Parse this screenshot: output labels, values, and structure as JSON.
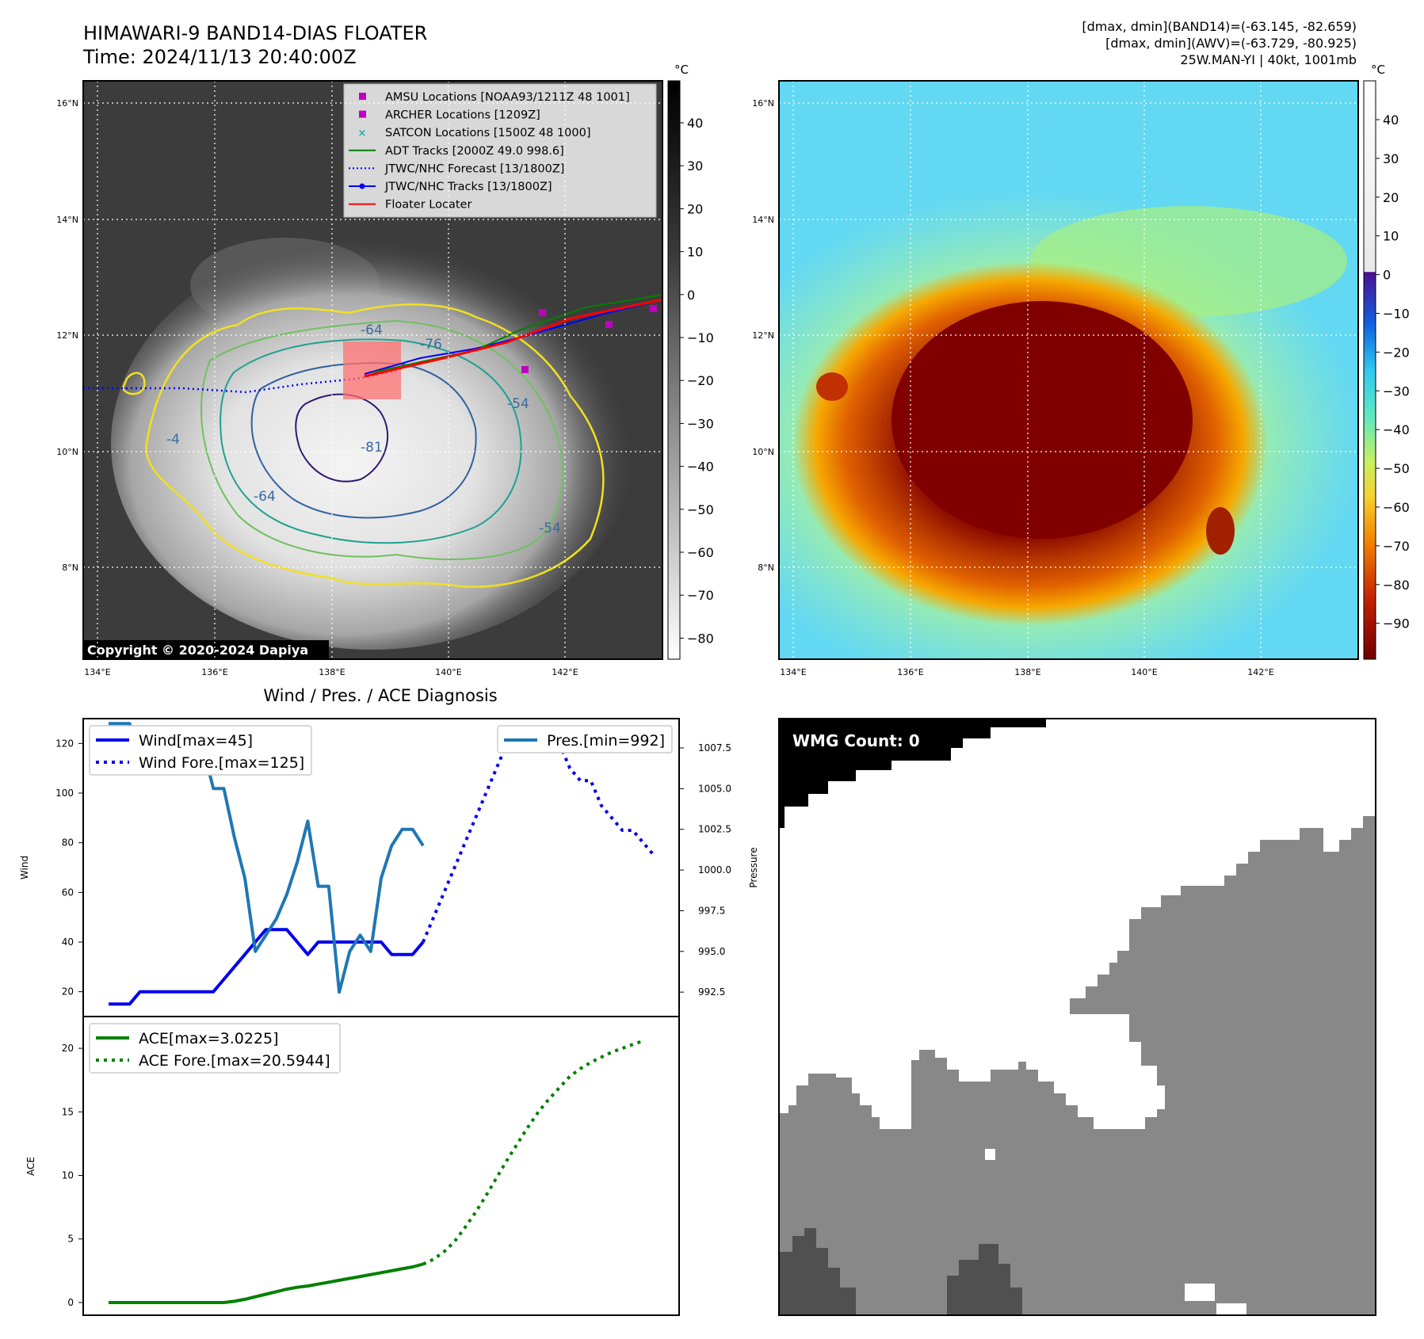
{
  "header": {
    "title_line1": "HIMAWARI-9 BAND14-DIAS FLOATER",
    "title_line2": "Time: 2024/11/13 20:40:00Z",
    "info_line1": "[dmax, dmin](BAND14)=(-63.145, -82.659)",
    "info_line2": "[dmax, dmin](AWV)=(-63.729, -80.925)",
    "info_line3": "25W.MAN-YI | 40kt, 1001mb"
  },
  "map": {
    "lat_labels": [
      "16°N",
      "14°N",
      "12°N",
      "10°N",
      "8°N"
    ],
    "lon_labels": [
      "134°E",
      "136°E",
      "138°E",
      "140°E",
      "142°E"
    ],
    "contour_labels": [
      "-64",
      "-76",
      "-54",
      "-81",
      "-64",
      "-4",
      "-54"
    ],
    "copyright": "Copyright © 2020-2024 Dapiya",
    "legend": [
      {
        "label": "AMSU Locations [NOAA93/1211Z 48 1001]",
        "color": "#c000c0",
        "marker": "square"
      },
      {
        "label": "ARCHER Locations [1209Z]",
        "color": "#c000c0",
        "marker": "square"
      },
      {
        "label": "SATCON Locations [1500Z 48 1000]",
        "color": "#20b0b0",
        "marker": "x"
      },
      {
        "label": "ADT Tracks [2000Z 49.0 998.6]",
        "color": "#008000",
        "marker": "line"
      },
      {
        "label": "JTWC/NHC Forecast [13/1800Z]",
        "color": "#0000ff",
        "marker": "dotted"
      },
      {
        "label": "JTWC/NHC Tracks [13/1800Z]",
        "color": "#0000ff",
        "marker": "line-dot"
      },
      {
        "label": "Floater Locater",
        "color": "#ff0000",
        "marker": "line"
      }
    ]
  },
  "colorbar_ir": {
    "unit": "°C",
    "ticks": [
      "40",
      "30",
      "20",
      "10",
      "0",
      "−10",
      "−20",
      "−30",
      "−40",
      "−50",
      "−60",
      "−70",
      "−80"
    ]
  },
  "colorbar_wv": {
    "unit": "°C",
    "ticks": [
      "40",
      "30",
      "20",
      "10",
      "0",
      "−10",
      "−20",
      "−30",
      "−40",
      "−50",
      "−60",
      "−70",
      "−80",
      "−90"
    ]
  },
  "wmg": {
    "label": "WMG Count: 0"
  },
  "chart_data": [
    {
      "type": "line",
      "title": "Wind / Pres. / ACE Diagnosis",
      "ylabel": "Wind",
      "ylabel_right": "Pressure",
      "ylim": [
        10,
        130
      ],
      "ylim_right": [
        991.0,
        1009.3
      ],
      "yticks": [
        "20",
        "40",
        "60",
        "80",
        "100",
        "120"
      ],
      "yticks_right": [
        "992.5",
        "995.0",
        "997.5",
        "1000.0",
        "1002.5",
        "1005.0",
        "1007.5"
      ],
      "x_steps": 53,
      "series": [
        {
          "name": "Wind[max=45]",
          "style": "solid",
          "color": "#0000ee",
          "values": [
            15,
            15,
            15,
            20,
            20,
            20,
            20,
            20,
            20,
            20,
            20,
            25,
            30,
            35,
            40,
            45,
            45,
            45,
            40,
            35,
            40,
            40,
            40,
            40,
            40,
            40,
            40,
            35,
            35,
            35,
            40
          ]
        },
        {
          "name": "Wind Fore.[max=125]",
          "style": "dotted",
          "color": "#0000ee",
          "x_start": 30,
          "values": [
            40,
            50,
            60,
            70,
            80,
            90,
            100,
            110,
            120,
            125,
            125,
            125,
            122,
            120,
            110,
            105,
            105,
            95,
            90,
            85,
            85,
            80,
            75
          ]
        },
        {
          "name": "Pres.[min=992]",
          "style": "solid",
          "color": "#1f77b4",
          "axis": "right",
          "values": [
            1009,
            1009,
            1009,
            1007,
            1007,
            1007.5,
            1007.5,
            1007.5,
            1007.5,
            1007.5,
            1005,
            1005,
            1002,
            999.5,
            995,
            996,
            997,
            998.5,
            1000.5,
            1003,
            999,
            999,
            992.5,
            995,
            996,
            995,
            999.5,
            1001.5,
            1002.5,
            1002.5,
            1001.5
          ]
        }
      ]
    },
    {
      "type": "line",
      "ylabel": "ACE",
      "ylim": [
        -1,
        22.5
      ],
      "yticks": [
        "0",
        "5",
        "10",
        "15",
        "20"
      ],
      "x_steps": 53,
      "series": [
        {
          "name": "ACE[max=3.0225]",
          "style": "solid",
          "color": "#008000",
          "values": [
            0,
            0,
            0,
            0,
            0,
            0,
            0,
            0,
            0,
            0,
            0,
            0,
            0.1,
            0.25,
            0.45,
            0.65,
            0.85,
            1.05,
            1.2,
            1.3,
            1.45,
            1.6,
            1.75,
            1.9,
            2.05,
            2.2,
            2.35,
            2.5,
            2.65,
            2.8,
            3.0225
          ]
        },
        {
          "name": "ACE Fore.[max=20.5944]",
          "style": "dotted",
          "color": "#008000",
          "x_start": 30,
          "values": [
            3.0225,
            3.4,
            4.0,
            4.8,
            5.9,
            7.1,
            8.4,
            9.8,
            11.2,
            12.5,
            13.8,
            15.0,
            16.0,
            16.9,
            17.8,
            18.4,
            18.9,
            19.3,
            19.7,
            20.0,
            20.3,
            20.5944
          ]
        }
      ]
    }
  ]
}
